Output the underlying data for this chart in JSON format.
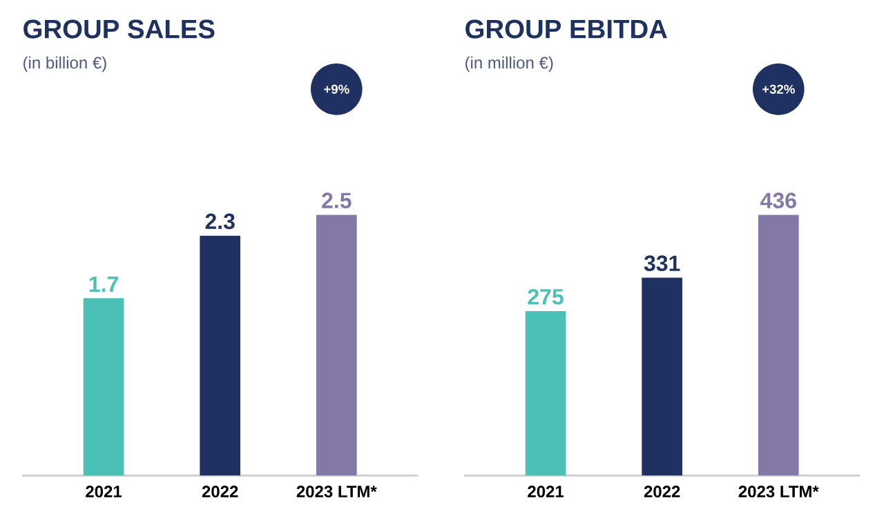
{
  "chart_data": [
    {
      "type": "bar",
      "title": "GROUP SALES",
      "subtitle": "(in billion €)",
      "categories": [
        "2021",
        "2022",
        "2023 LTM*"
      ],
      "values": [
        1.7,
        2.3,
        2.5
      ],
      "colors": [
        "#4bc0b7",
        "#1f3161",
        "#8479a6"
      ],
      "data_labels": true,
      "annotations": [
        "+9%"
      ]
    },
    {
      "type": "bar",
      "title": "GROUP EBITDA",
      "subtitle": "(in million €)",
      "categories": [
        "2021",
        "2022",
        "2023 LTM*"
      ],
      "values": [
        275,
        331,
        436
      ],
      "colors": [
        "#4bc0b7",
        "#1f3161",
        "#8479a6"
      ],
      "data_labels": true,
      "annotations": [
        "+32%"
      ]
    }
  ]
}
